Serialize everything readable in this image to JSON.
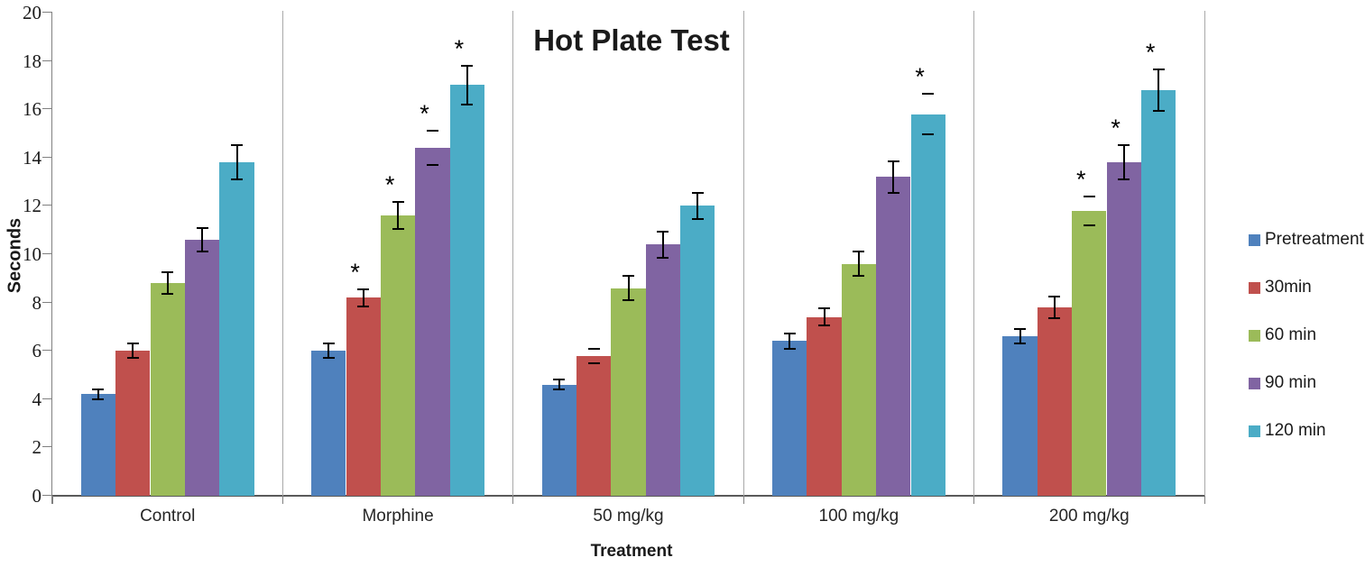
{
  "chart_data": {
    "type": "bar",
    "title": "Hot Plate Test",
    "xlabel": "Treatment",
    "ylabel": "Seconds",
    "ylim": [
      0,
      20
    ],
    "yticks": [
      0,
      2,
      4,
      6,
      8,
      10,
      12,
      14,
      16,
      18,
      20
    ],
    "grid": false,
    "legend_position": "right",
    "significance_marker": "*",
    "categories": [
      "Control",
      "Morphine",
      "50 mg/kg",
      "100 mg/kg",
      "200 mg/kg"
    ],
    "series": [
      {
        "name": "Pretreatment",
        "color": "#4F81BD",
        "values": [
          4.2,
          6.0,
          4.6,
          6.4,
          6.6
        ],
        "errors": [
          0.2,
          0.3,
          0.2,
          0.3,
          0.3
        ],
        "significant": [
          false,
          false,
          false,
          false,
          false
        ],
        "caps_only": [
          false,
          false,
          false,
          false,
          false
        ]
      },
      {
        "name": "30min",
        "color": "#C0504D",
        "values": [
          6.0,
          8.2,
          5.8,
          7.4,
          7.8
        ],
        "errors": [
          0.3,
          0.35,
          0.3,
          0.35,
          0.45
        ],
        "significant": [
          false,
          true,
          false,
          false,
          false
        ],
        "caps_only": [
          false,
          false,
          true,
          false,
          false
        ]
      },
      {
        "name": "60 min",
        "color": "#9BBB59",
        "values": [
          8.8,
          11.6,
          8.6,
          9.6,
          11.8
        ],
        "errors": [
          0.45,
          0.55,
          0.5,
          0.5,
          0.6
        ],
        "significant": [
          false,
          true,
          false,
          false,
          true
        ],
        "caps_only": [
          false,
          false,
          false,
          false,
          true
        ]
      },
      {
        "name": "90 min",
        "color": "#8064A2",
        "values": [
          10.6,
          14.4,
          10.4,
          13.2,
          13.8
        ],
        "errors": [
          0.5,
          0.7,
          0.55,
          0.65,
          0.7
        ],
        "significant": [
          false,
          true,
          false,
          false,
          true
        ],
        "caps_only": [
          false,
          true,
          false,
          false,
          false
        ]
      },
      {
        "name": "120 min",
        "color": "#4BACC6",
        "values": [
          13.8,
          17.0,
          12.0,
          15.8,
          16.8
        ],
        "errors": [
          0.7,
          0.8,
          0.55,
          0.85,
          0.85
        ],
        "significant": [
          false,
          true,
          false,
          true,
          true
        ],
        "caps_only": [
          false,
          false,
          false,
          true,
          false
        ]
      }
    ]
  }
}
